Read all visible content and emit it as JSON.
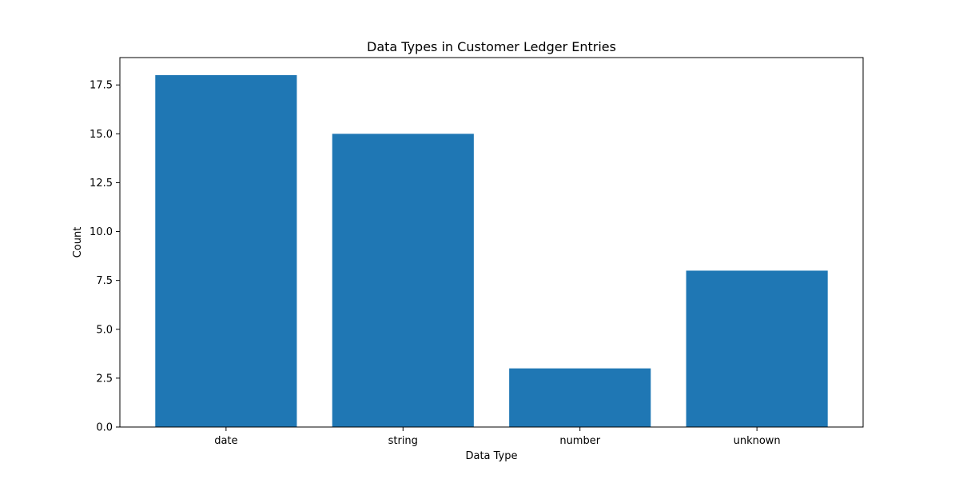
{
  "chart_data": {
    "type": "bar",
    "title": "Data Types in Customer Ledger Entries",
    "xlabel": "Data Type",
    "ylabel": "Count",
    "categories": [
      "date",
      "string",
      "number",
      "unknown"
    ],
    "values": [
      18,
      15,
      3,
      8
    ],
    "ylim": [
      0,
      18.9
    ],
    "yticks": [
      "0.0",
      "2.5",
      "5.0",
      "7.5",
      "10.0",
      "12.5",
      "15.0",
      "17.5"
    ],
    "bar_color": "#1f77b4",
    "grid": false,
    "legend": "none"
  }
}
